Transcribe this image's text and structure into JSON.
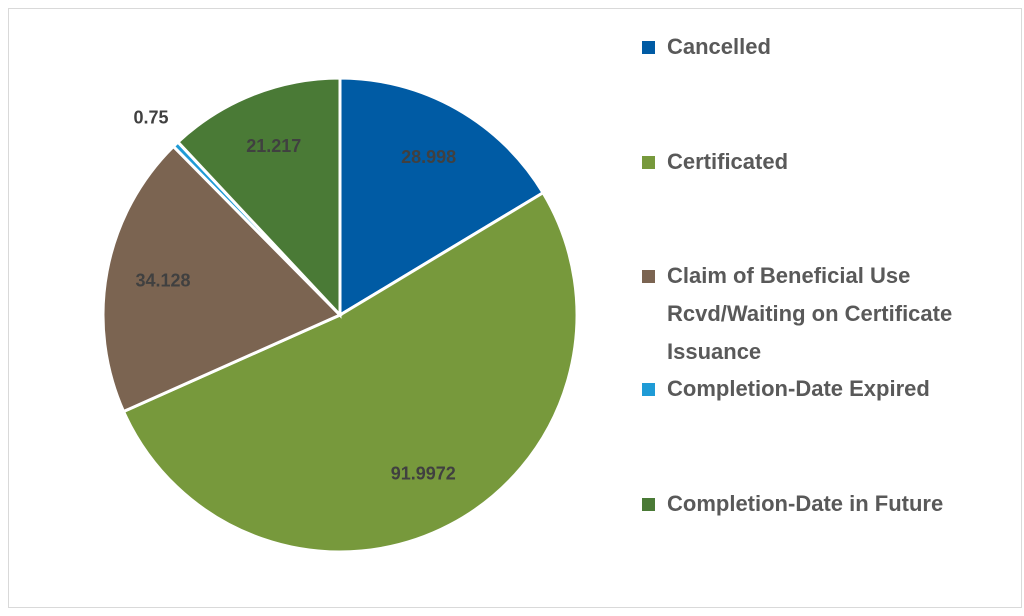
{
  "chart_data": {
    "type": "pie",
    "categories": [
      "Cancelled",
      "Certificated",
      "Claim of Beneficial Use Rcvd/Waiting on Certificate Issuance",
      "Completion-Date Expired",
      "Completion-Date in Future"
    ],
    "values": [
      28.998,
      91.9972,
      34.128,
      0.75,
      21.217
    ],
    "colors": [
      "#005ba4",
      "#77993c",
      "#7b6451",
      "#1f9bd6",
      "#4a7a36"
    ],
    "legend": "right"
  }
}
